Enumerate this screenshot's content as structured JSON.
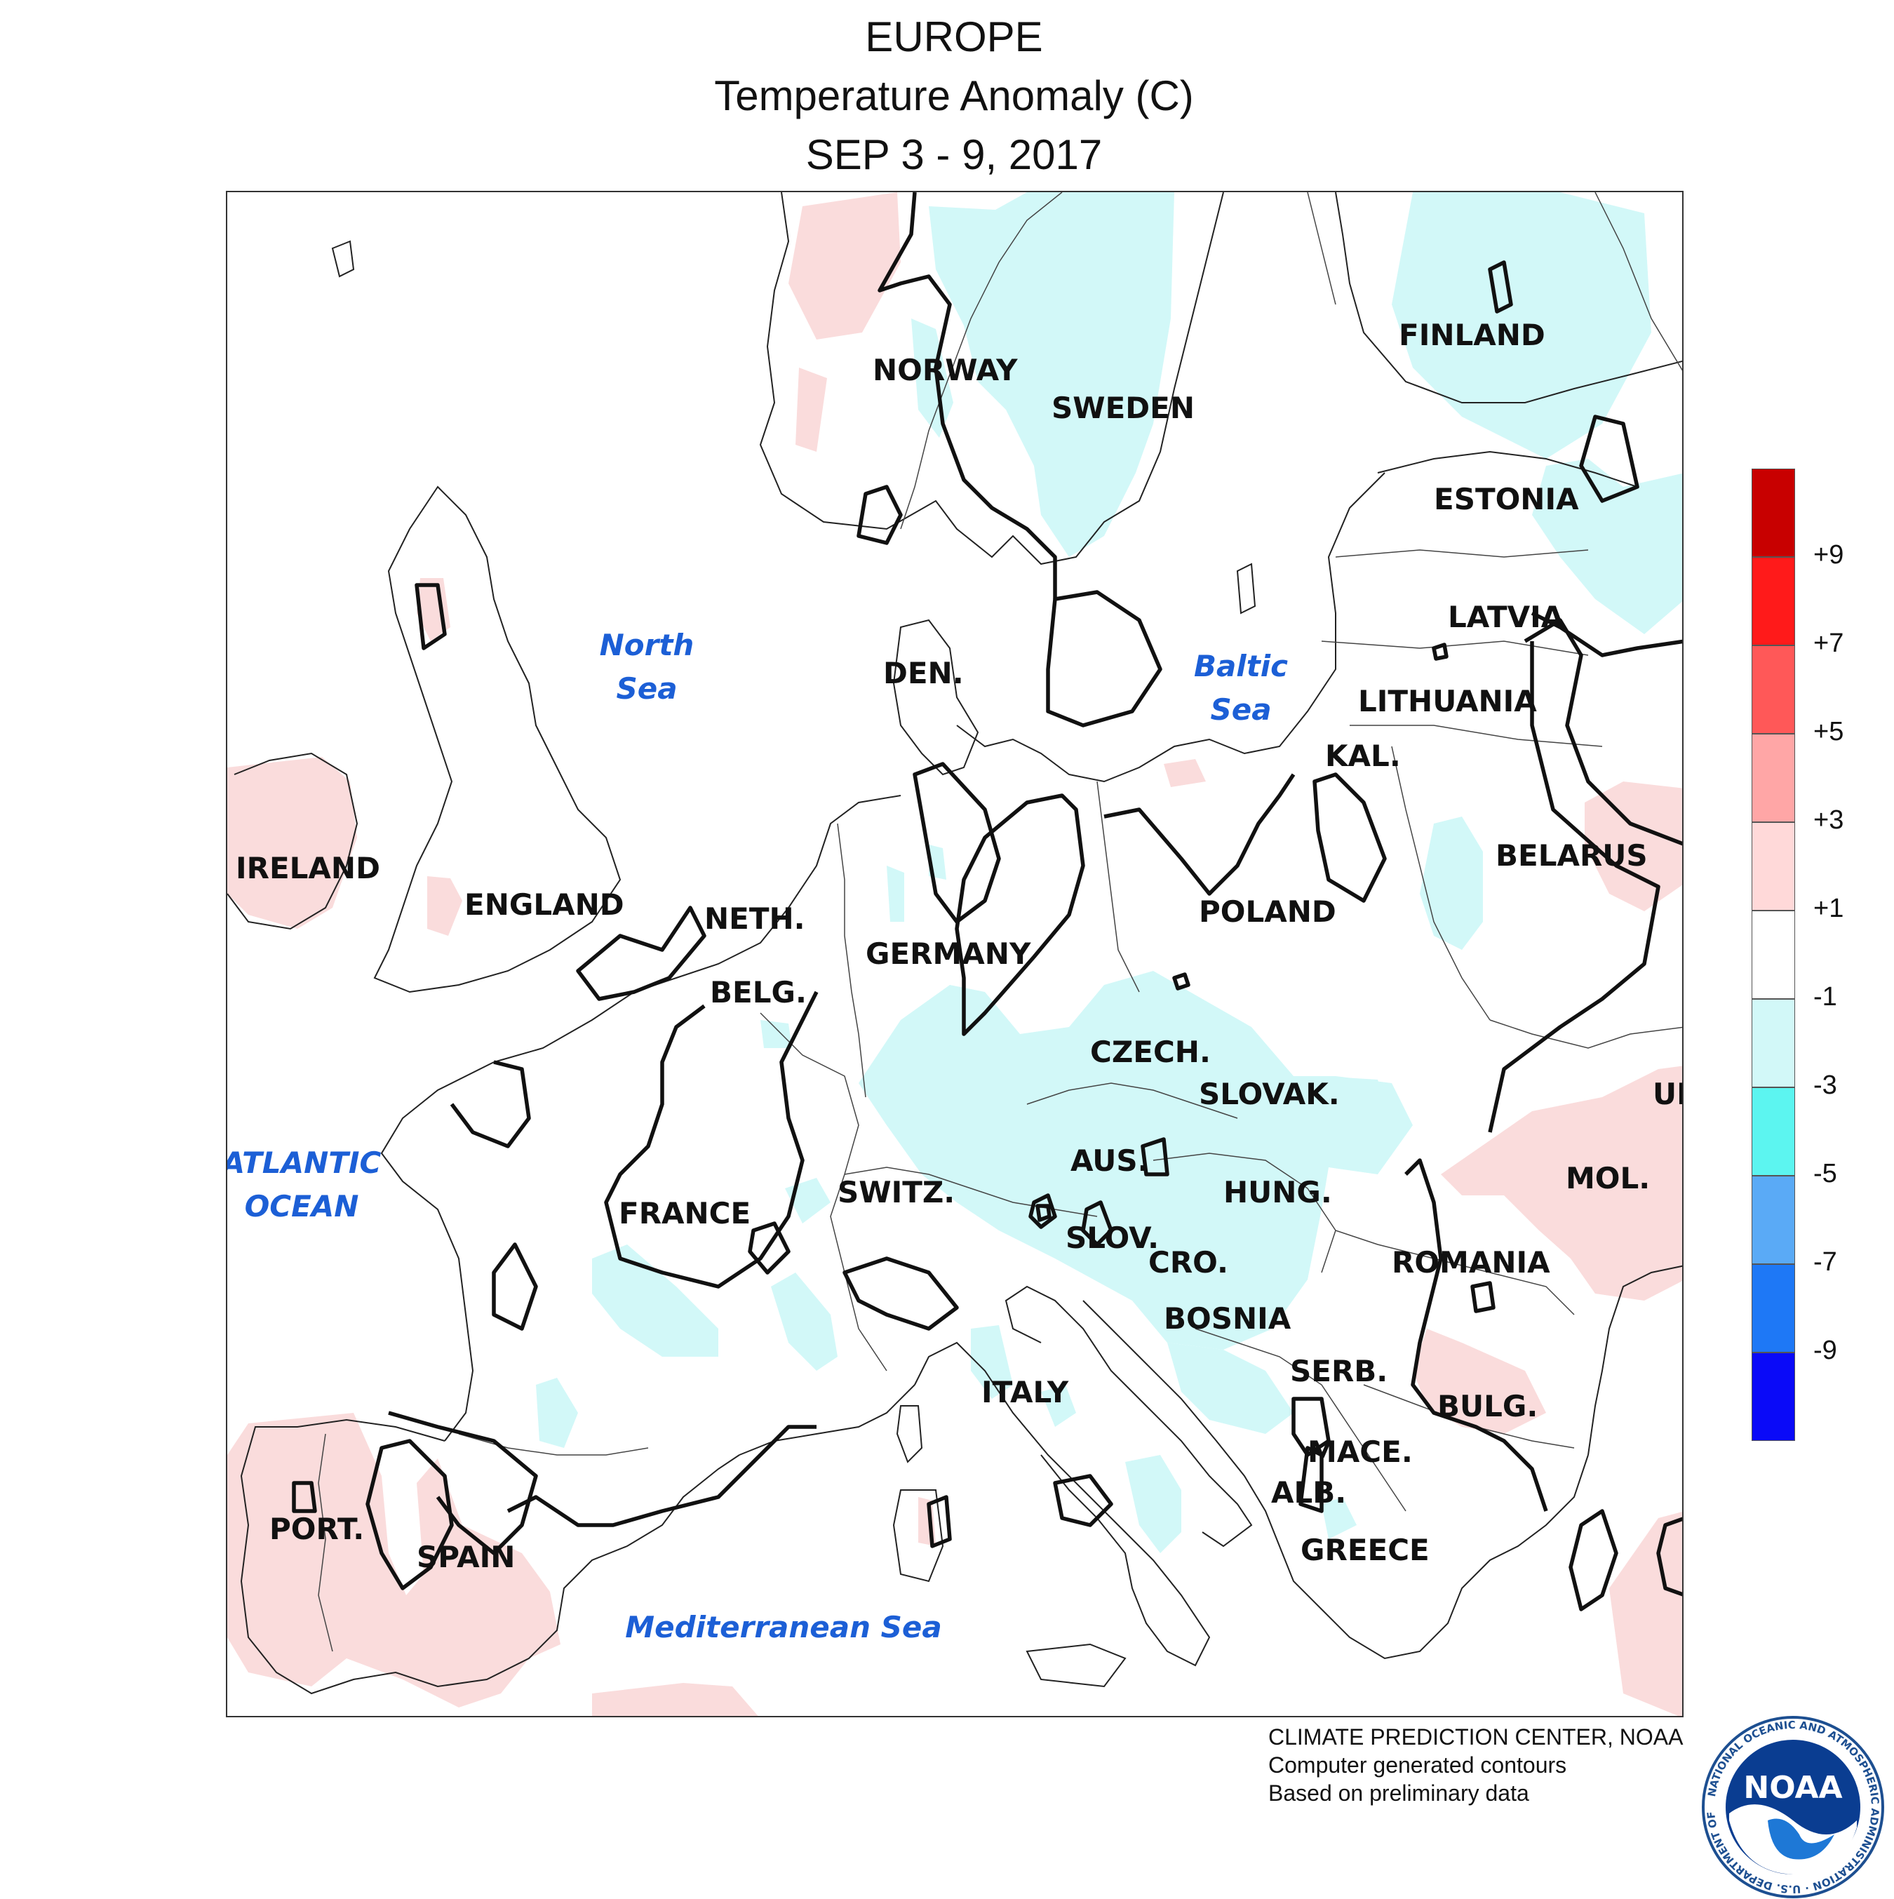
{
  "title": {
    "line1": "EUROPE",
    "line2": "Temperature Anomaly (C)",
    "line3": "SEP 3 - 9, 2017"
  },
  "labels": {
    "norway": "NORWAY",
    "sweden": "SWEDEN",
    "finland": "FINLAND",
    "estonia": "ESTONIA",
    "latvia": "LATVIA",
    "lithuania": "LITHUANIA",
    "kaliningrad": "KAL.",
    "belarus": "BELARUS",
    "poland": "POLAND",
    "denmark": "DEN.",
    "ireland": "IRELAND",
    "england": "ENGLAND",
    "netherlands": "NETH.",
    "belgium": "BELG.",
    "germany": "GERMANY",
    "czech": "CZECH.",
    "slovakia": "SLOVAK.",
    "ukraine": "UK",
    "moldova": "MOL.",
    "austria": "AUS.",
    "hungary": "HUNG.",
    "switzerland": "SWITZ.",
    "france": "FRANCE",
    "slovenia": "SLOV.",
    "croatia": "CRO.",
    "romania": "ROMANIA",
    "bosnia": "BOSNIA",
    "serbia": "SERB.",
    "bulgaria": "BULG.",
    "italy": "ITALY",
    "macedonia": "MACE.",
    "albania": "ALB.",
    "greece": "GREECE",
    "portugal": "PORT.",
    "spain": "SPAIN"
  },
  "seas": {
    "north_sea_1": "North",
    "north_sea_2": "Sea",
    "baltic_sea_1": "Baltic",
    "baltic_sea_2": "Sea",
    "atlantic_1": "ATLANTIC",
    "atlantic_2": "OCEAN",
    "mediterranean": "Mediterranean Sea"
  },
  "legend": {
    "colors": [
      "#c80000",
      "#ff1a1a",
      "#ff5858",
      "#ffa6a6",
      "#ffd9d9",
      "#ffffff",
      "#d2f8f8",
      "#5cf5f0",
      "#5aaaf6",
      "#1e78f6",
      "#0a0af8"
    ],
    "ticks": [
      "+9",
      "+7",
      "+5",
      "+3",
      "+1",
      "-1",
      "-3",
      "-5",
      "-7",
      "-9"
    ]
  },
  "fill_colors": {
    "warm": "#fadcdc",
    "cool": "#d2f8f8",
    "warm_strong": "#f4b4b4",
    "cool_strong": "#5aaaf6"
  },
  "credits": {
    "line1": "CLIMATE PREDICTION CENTER, NOAA",
    "line2": "Computer generated contours",
    "line3": "Based on preliminary data"
  },
  "logo": {
    "text": "NOAA",
    "ring_text": "NATIONAL OCEANIC AND ATMOSPHERIC ADMINISTRATION · U.S. DEPARTMENT OF COMMERCE"
  }
}
